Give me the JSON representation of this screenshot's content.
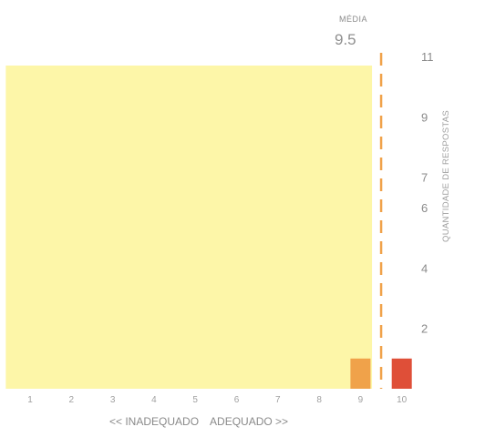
{
  "chart_data": {
    "type": "bar",
    "categories": [
      "1",
      "2",
      "3",
      "4",
      "5",
      "6",
      "7",
      "8",
      "9",
      "10"
    ],
    "values": [
      0,
      0,
      0,
      0,
      0,
      0,
      0,
      0,
      1,
      1
    ],
    "bar_colors": [
      "#f0a24a",
      "#f0a24a",
      "#f0a24a",
      "#f0a24a",
      "#f0a24a",
      "#f0a24a",
      "#f0a24a",
      "#f0a24a",
      "#f0a24a",
      "#df4f38"
    ],
    "ylim": [
      0,
      11
    ],
    "y_ticks": [
      2,
      4,
      6,
      7,
      9,
      11
    ],
    "ylabel": "QUANTIDADE DE RESPOSTAS",
    "xlabel_left": "<< INADEQUADO",
    "xlabel_right": "ADEQUADO >>",
    "mean_label": "MÉDIA",
    "mean_value": "9.5",
    "mean_x": 9.5,
    "highlight_region": {
      "from_category": "1",
      "to_category": "9",
      "color": "#fdf6a8"
    },
    "mean_line_color": "#f0a24a",
    "grid": false
  }
}
